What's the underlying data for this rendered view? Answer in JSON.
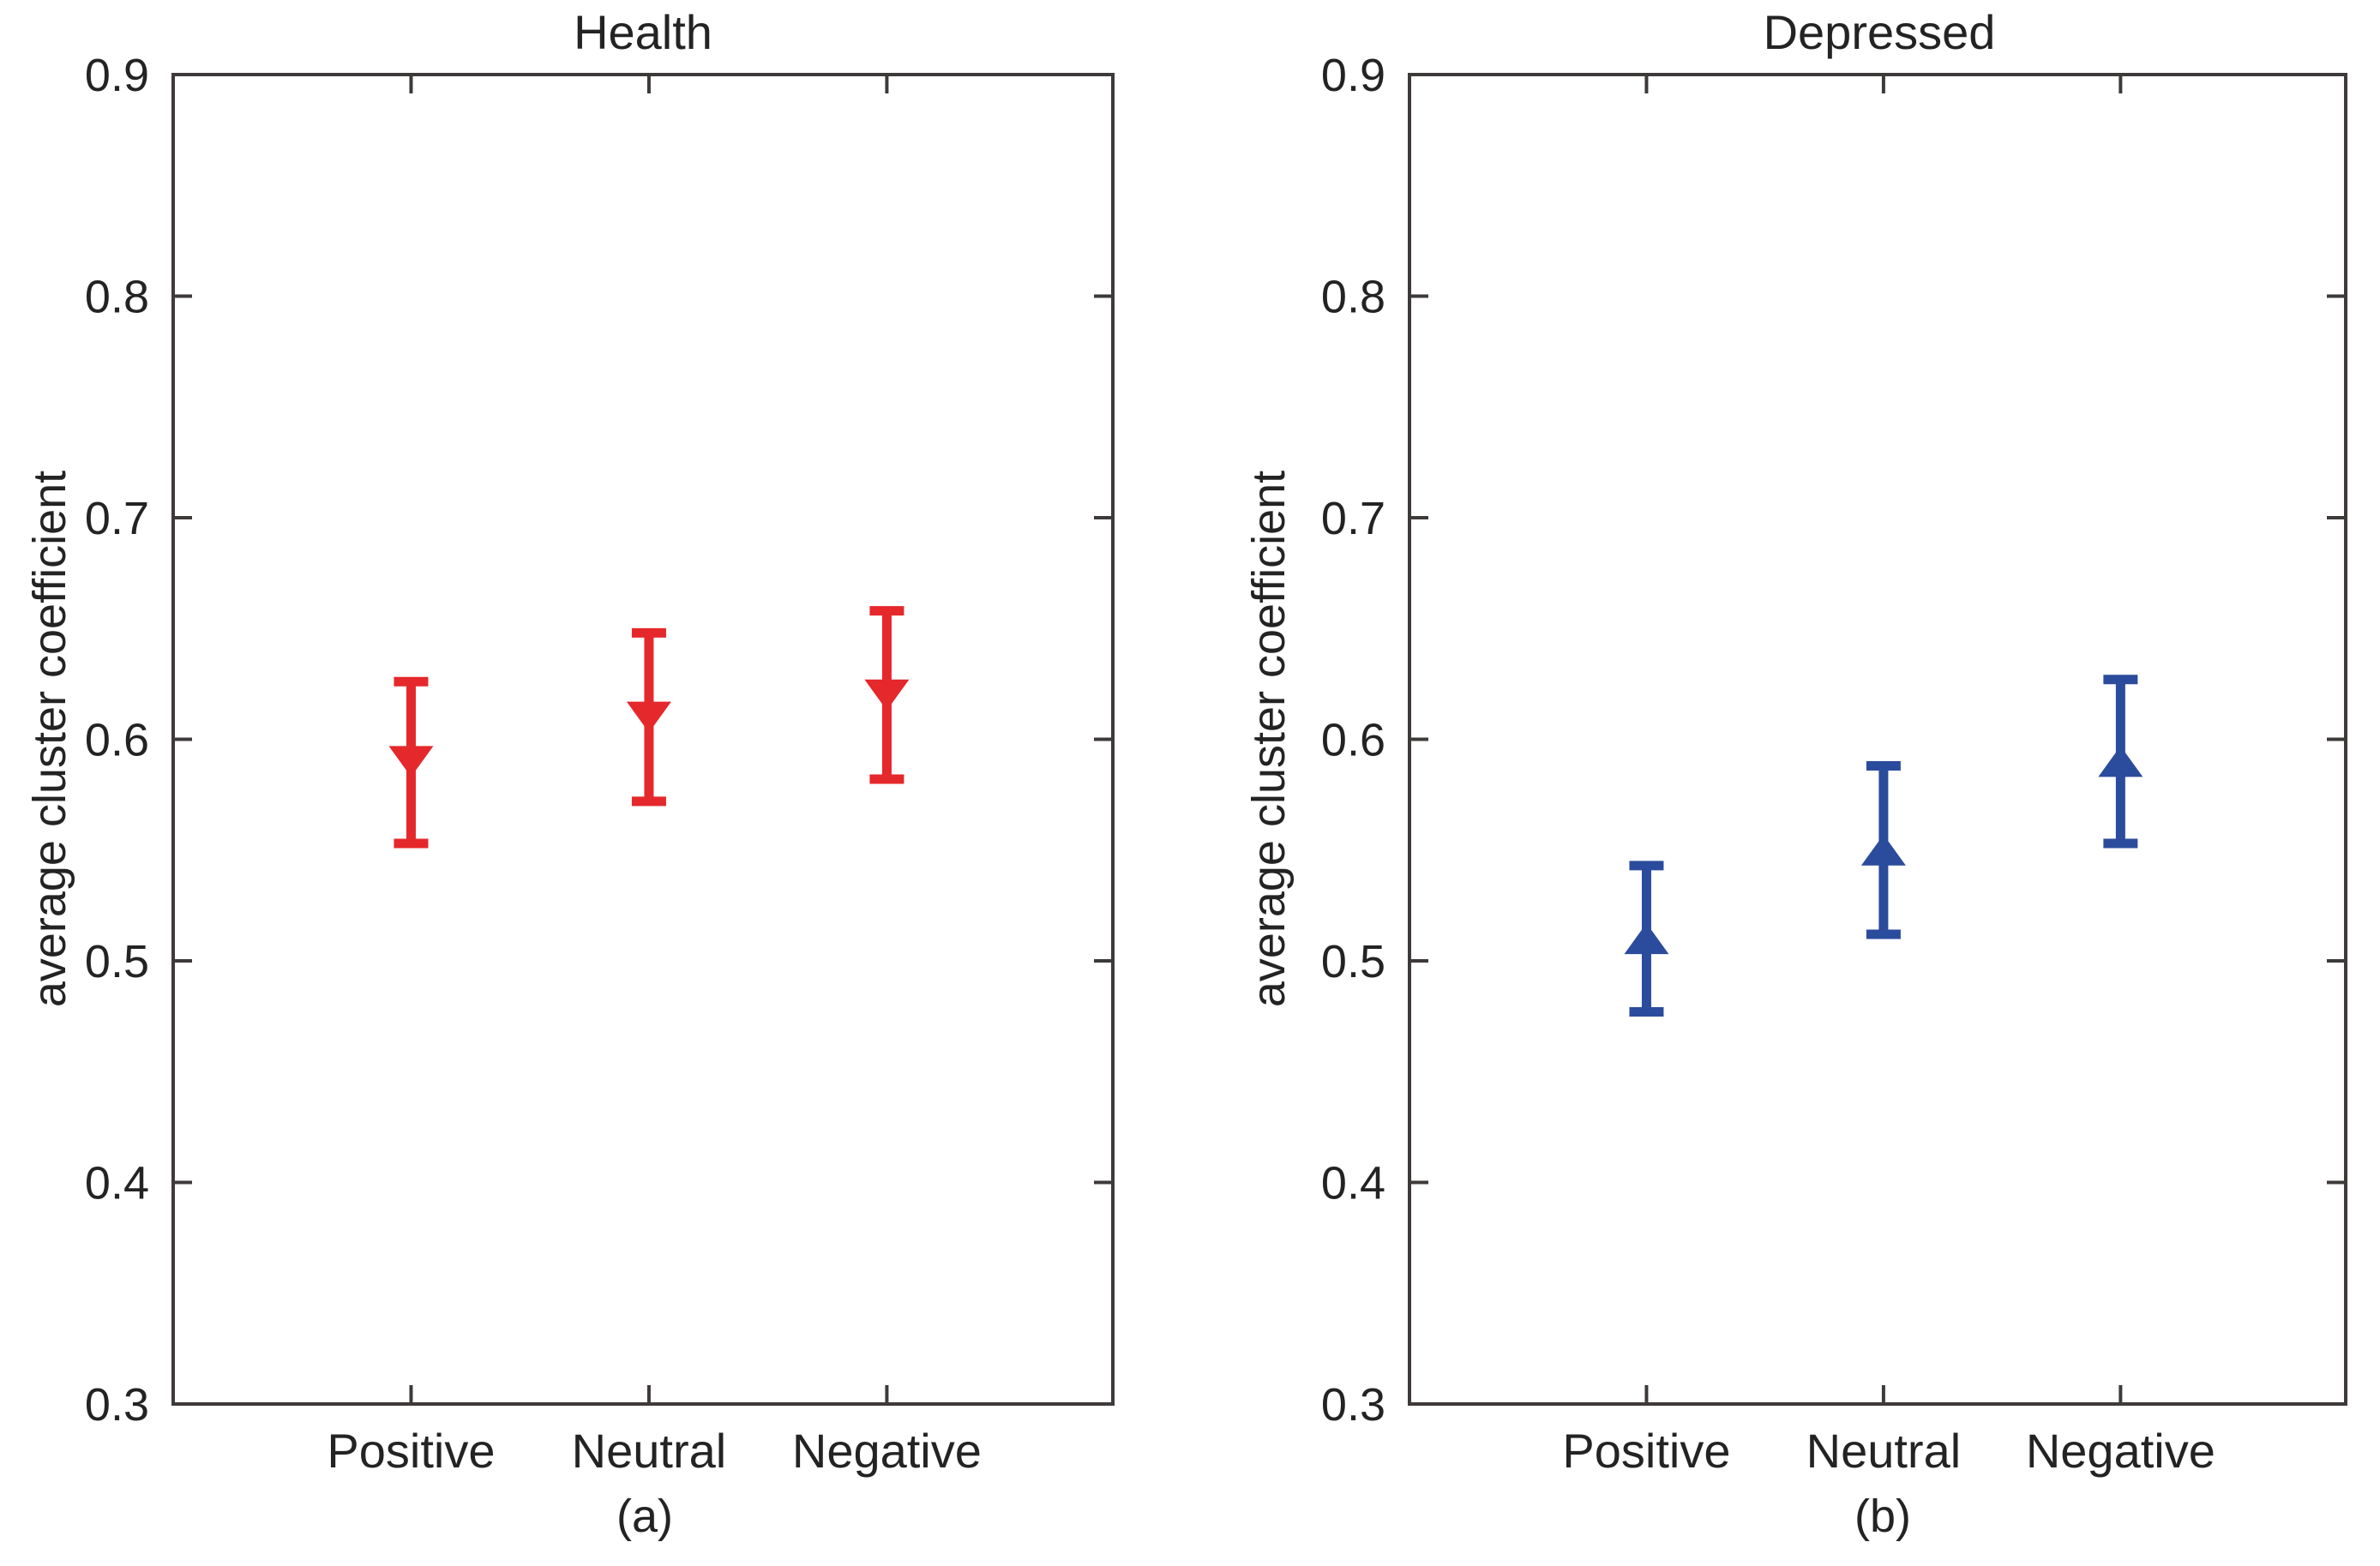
{
  "figure": {
    "background": "#ffffff",
    "axis_color": "#3d3a39",
    "text_color": "#232323"
  },
  "chart_data": [
    {
      "type": "errorbar",
      "title": "Health",
      "caption": "(a)",
      "ylabel": "average cluster coefficient",
      "categories": [
        "Positive",
        "Neutral",
        "Negative"
      ],
      "x": [
        1,
        2,
        3
      ],
      "xlim": [
        0,
        3.95
      ],
      "ylim": [
        0.3,
        0.9
      ],
      "yticks": [
        0.3,
        0.4,
        0.5,
        0.6,
        0.7,
        0.8,
        0.9
      ],
      "ytick_labels": [
        "0.3",
        "0.4",
        "0.5",
        "0.6",
        "0.7",
        "0.8",
        "0.9"
      ],
      "grid": false,
      "legend": "none",
      "series": [
        {
          "name": "Health",
          "color": "#e5282b",
          "marker": "triangle-down",
          "means": [
            0.59,
            0.61,
            0.62
          ],
          "lower": [
            0.553,
            0.572,
            0.582
          ],
          "upper": [
            0.626,
            0.648,
            0.658
          ]
        }
      ]
    },
    {
      "type": "errorbar",
      "title": "Depressed",
      "caption": "(b)",
      "ylabel": "average cluster coefficient",
      "categories": [
        "Positive",
        "Neutral",
        "Negative"
      ],
      "x": [
        1,
        2,
        3
      ],
      "xlim": [
        0,
        3.95
      ],
      "ylim": [
        0.3,
        0.9
      ],
      "yticks": [
        0.3,
        0.4,
        0.5,
        0.6,
        0.7,
        0.8,
        0.9
      ],
      "ytick_labels": [
        "0.3",
        "0.4",
        "0.5",
        "0.6",
        "0.7",
        "0.8",
        "0.9"
      ],
      "grid": false,
      "legend": "none",
      "series": [
        {
          "name": "Depressed",
          "color": "#2b4c9c",
          "marker": "triangle-up",
          "means": [
            0.51,
            0.55,
            0.59
          ],
          "lower": [
            0.477,
            0.512,
            0.553
          ],
          "upper": [
            0.543,
            0.588,
            0.627
          ]
        }
      ]
    }
  ]
}
